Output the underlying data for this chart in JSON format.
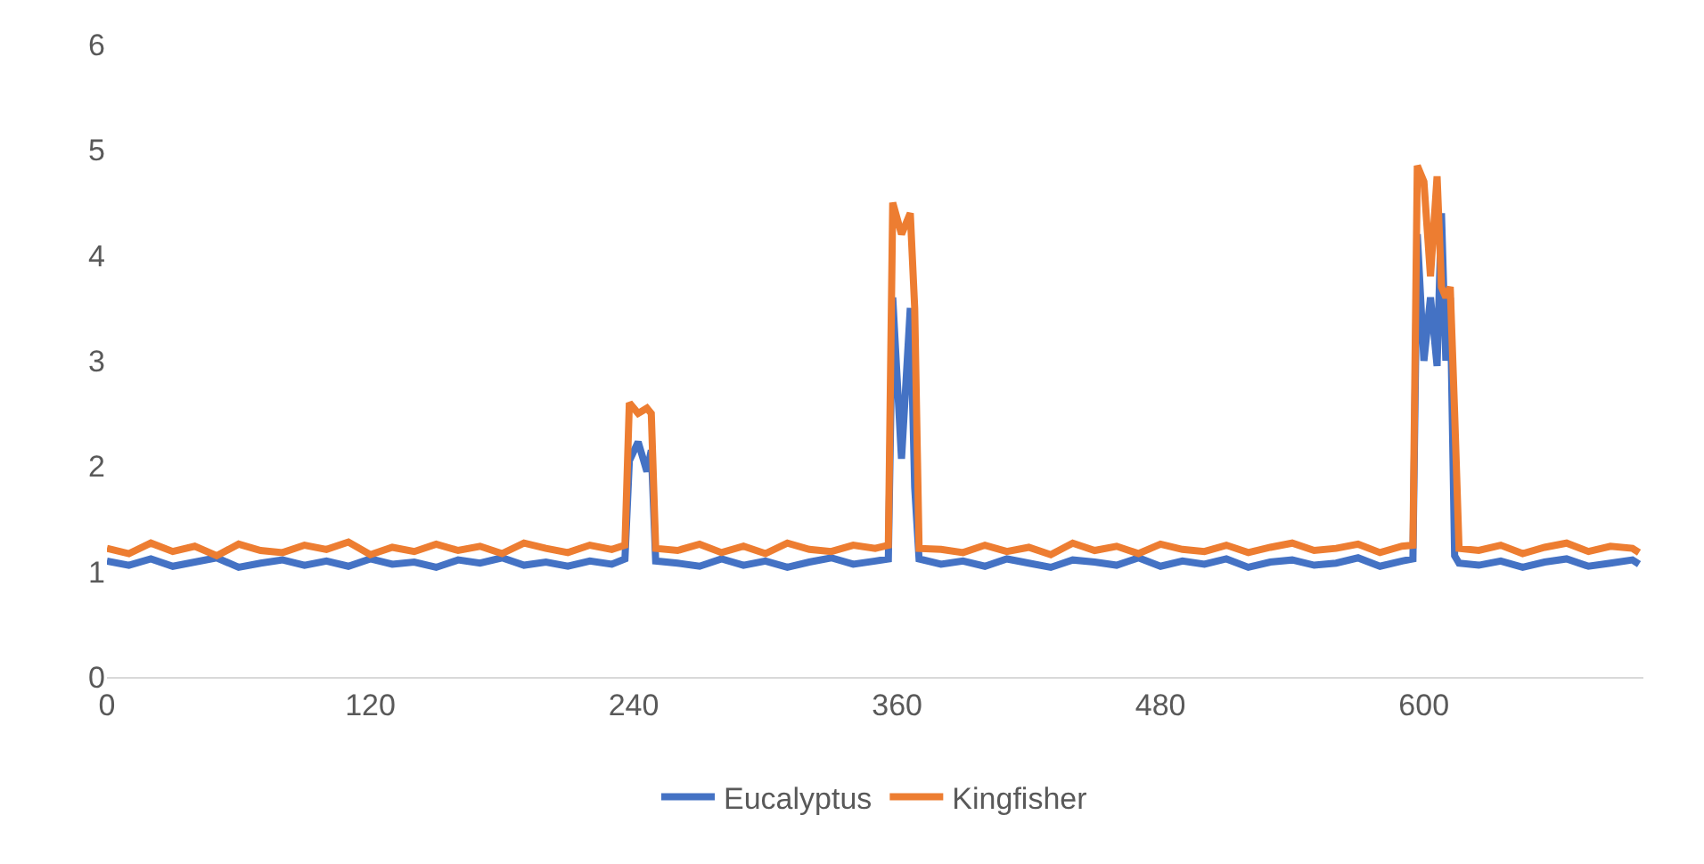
{
  "chart_data": {
    "type": "line",
    "x": [
      0,
      10,
      20,
      30,
      40,
      50,
      60,
      70,
      80,
      90,
      100,
      110,
      120,
      130,
      140,
      150,
      160,
      170,
      180,
      190,
      200,
      210,
      220,
      230,
      236,
      238,
      242,
      246,
      248,
      250,
      260,
      270,
      280,
      290,
      300,
      310,
      320,
      330,
      340,
      350,
      356,
      358,
      362,
      366,
      368,
      370,
      380,
      390,
      400,
      410,
      420,
      430,
      440,
      450,
      460,
      470,
      480,
      490,
      500,
      510,
      520,
      530,
      540,
      550,
      560,
      570,
      580,
      590,
      595,
      597,
      600,
      603,
      606,
      608,
      610,
      612,
      614,
      616,
      625,
      635,
      645,
      655,
      665,
      675,
      685,
      695,
      698
    ],
    "series": [
      {
        "name": "Eucalyptus",
        "color": "#4472c4",
        "values": [
          1.1,
          1.06,
          1.12,
          1.05,
          1.09,
          1.13,
          1.04,
          1.08,
          1.11,
          1.06,
          1.1,
          1.05,
          1.12,
          1.07,
          1.09,
          1.04,
          1.11,
          1.08,
          1.13,
          1.06,
          1.09,
          1.05,
          1.1,
          1.07,
          1.12,
          2.05,
          2.23,
          1.95,
          2.15,
          1.1,
          1.08,
          1.05,
          1.12,
          1.06,
          1.1,
          1.04,
          1.09,
          1.13,
          1.07,
          1.1,
          1.12,
          3.6,
          2.07,
          3.5,
          1.8,
          1.12,
          1.07,
          1.1,
          1.05,
          1.12,
          1.08,
          1.04,
          1.11,
          1.09,
          1.06,
          1.13,
          1.05,
          1.1,
          1.07,
          1.12,
          1.04,
          1.09,
          1.11,
          1.06,
          1.08,
          1.13,
          1.05,
          1.1,
          1.12,
          4.2,
          3.0,
          3.6,
          2.95,
          4.4,
          3.0,
          3.6,
          1.15,
          1.08,
          1.06,
          1.1,
          1.04,
          1.09,
          1.12,
          1.05,
          1.08,
          1.11,
          1.07
        ]
      },
      {
        "name": "Kingfisher",
        "color": "#ed7d31",
        "values": [
          1.22,
          1.17,
          1.27,
          1.19,
          1.24,
          1.15,
          1.26,
          1.2,
          1.18,
          1.25,
          1.21,
          1.28,
          1.16,
          1.23,
          1.19,
          1.26,
          1.2,
          1.24,
          1.17,
          1.27,
          1.22,
          1.18,
          1.25,
          1.21,
          1.25,
          2.6,
          2.5,
          2.55,
          2.5,
          1.22,
          1.2,
          1.26,
          1.18,
          1.24,
          1.17,
          1.27,
          1.21,
          1.19,
          1.25,
          1.22,
          1.25,
          4.5,
          4.2,
          4.4,
          3.5,
          1.22,
          1.21,
          1.18,
          1.25,
          1.19,
          1.23,
          1.16,
          1.27,
          1.2,
          1.24,
          1.17,
          1.26,
          1.21,
          1.19,
          1.25,
          1.18,
          1.23,
          1.27,
          1.2,
          1.22,
          1.26,
          1.18,
          1.24,
          1.25,
          4.85,
          4.7,
          3.8,
          4.75,
          3.7,
          3.6,
          3.7,
          2.5,
          1.22,
          1.2,
          1.25,
          1.17,
          1.23,
          1.27,
          1.19,
          1.24,
          1.22,
          1.18
        ]
      }
    ],
    "xlim": [
      0,
      700
    ],
    "xticks": [
      0,
      120,
      240,
      360,
      480,
      600
    ],
    "ylim": [
      0,
      6
    ],
    "yticks": [
      0,
      1,
      2,
      3,
      4,
      5,
      6
    ],
    "grid": false,
    "legend": "bottom",
    "marker": "none",
    "line_style": "solid"
  }
}
